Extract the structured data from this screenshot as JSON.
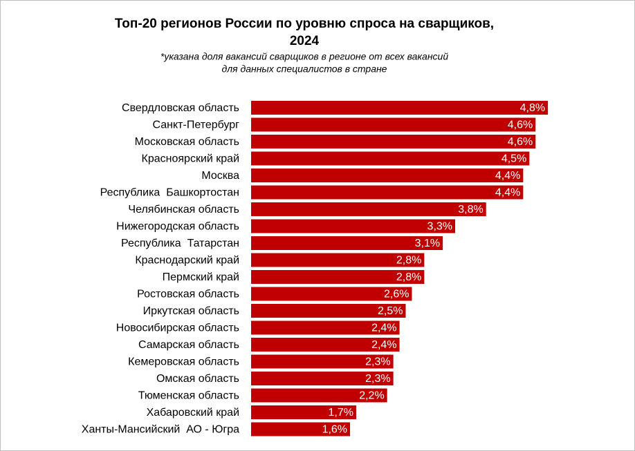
{
  "chart_data": {
    "type": "bar",
    "orientation": "horizontal",
    "title": [
      "Топ-20 регионов России по уровню спроса на сварщиков,",
      "2024"
    ],
    "subtitle": [
      "*указана доля вакансий сварщиков в регионе от всех вакансий",
      "для данных специалистов в стране"
    ],
    "categories": [
      "Свердловская область",
      "Санкт-Петербург",
      "Московская область",
      "Красноярский край",
      "Москва",
      "Республика  Башкортостан",
      "Челябинская область",
      "Нижегородская область",
      "Республика  Татарстан",
      "Краснодарский край",
      "Пермский край",
      "Ростовская область",
      "Иркутская область",
      "Новосибирская область",
      "Самарская область",
      "Кемеровская область",
      "Омская область",
      "Тюменская область",
      "Хабаровский край",
      "Ханты-Мансийский  АО - Югра"
    ],
    "values": [
      4.8,
      4.6,
      4.6,
      4.5,
      4.4,
      4.4,
      3.8,
      3.3,
      3.1,
      2.8,
      2.8,
      2.6,
      2.5,
      2.4,
      2.4,
      2.3,
      2.3,
      2.2,
      1.7,
      1.6
    ],
    "value_labels": [
      "4,8%",
      "4,6%",
      "4,6%",
      "4,5%",
      "4,4%",
      "4,4%",
      "3,8%",
      "3,3%",
      "3,1%",
      "2,8%",
      "2,8%",
      "2,6%",
      "2,5%",
      "2,4%",
      "2,4%",
      "2,3%",
      "2,3%",
      "2,2%",
      "1,7%",
      "1,6%"
    ],
    "color": "#c00000"
  }
}
